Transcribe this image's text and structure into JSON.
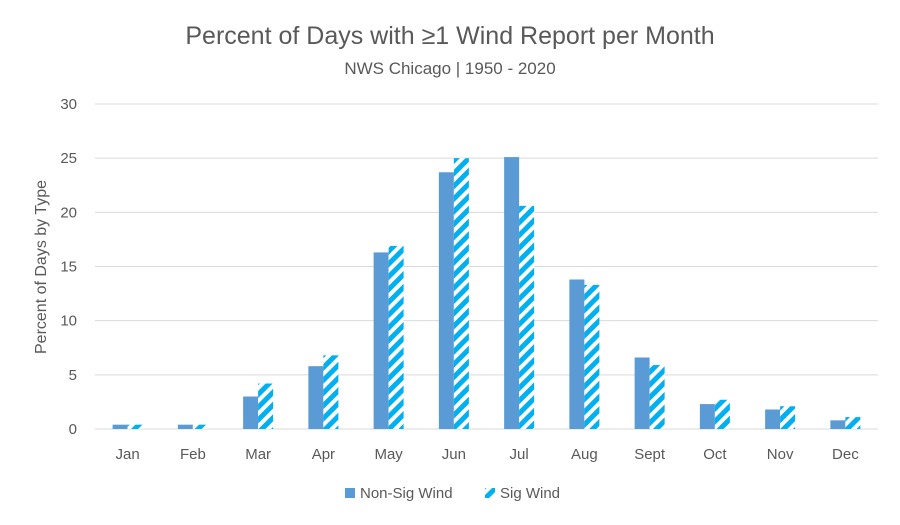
{
  "chart_data": {
    "type": "bar",
    "title": "Percent of Days with ≥1 Wind Report per Month",
    "subtitle": "NWS Chicago | 1950 - 2020",
    "xlabel": "",
    "ylabel": "Percent of Days by Type",
    "ylim": [
      0,
      30
    ],
    "yticks": [
      0,
      5,
      10,
      15,
      20,
      25,
      30
    ],
    "grid": true,
    "legend_position": "bottom",
    "categories": [
      "Jan",
      "Feb",
      "Mar",
      "Apr",
      "May",
      "Jun",
      "Jul",
      "Aug",
      "Sept",
      "Oct",
      "Nov",
      "Dec"
    ],
    "series": [
      {
        "name": "Non-Sig Wind",
        "color": "#5b9bd5",
        "pattern": "solid",
        "values": [
          0.4,
          0.4,
          3.0,
          5.8,
          16.3,
          23.7,
          25.1,
          13.8,
          6.6,
          2.3,
          1.8,
          0.8
        ]
      },
      {
        "name": "Sig Wind",
        "color": "#00b0f0",
        "pattern": "diagonal-stripes",
        "values": [
          0.4,
          0.4,
          4.2,
          6.8,
          16.9,
          25.0,
          20.6,
          13.3,
          5.9,
          2.7,
          2.1,
          1.1
        ]
      }
    ]
  }
}
